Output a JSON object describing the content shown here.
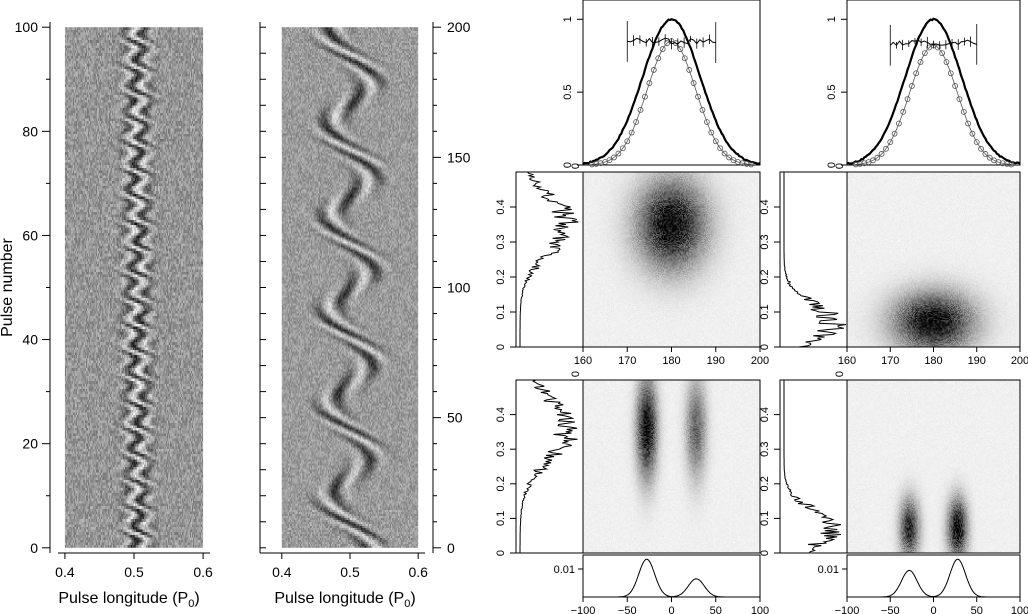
{
  "chart_data": [
    {
      "panel": "left-left",
      "type": "heatmap",
      "xlabel": "Pulse longitude (P",
      "xlabel_sub": "0",
      "xlabel_close": ")",
      "ylabel": "Pulse number",
      "xlim": [
        0.39,
        0.61
      ],
      "ylim": [
        -1,
        101
      ],
      "xticks": [
        0.4,
        0.5,
        0.6
      ],
      "xtick_labels": [
        "0.4",
        "0.5",
        "0.6"
      ],
      "yticks": [
        0,
        20,
        40,
        60,
        80,
        100
      ],
      "ytick_labels": [
        "0",
        "20",
        "40",
        "60",
        "80",
        "100"
      ],
      "pattern": {
        "center": 0.505,
        "drift_period": 20,
        "amplitude": 0.012,
        "width": 0.015
      }
    },
    {
      "panel": "left-right",
      "type": "heatmap",
      "xlabel": "Pulse longitude (P",
      "xlabel_sub": "0",
      "xlabel_close": ")",
      "xlim": [
        0.39,
        0.61
      ],
      "ylim": [
        -2,
        202
      ],
      "xticks": [
        0.4,
        0.5,
        0.6
      ],
      "xtick_labels": [
        "0.4",
        "0.5",
        "0.6"
      ],
      "yticks": [
        0,
        50,
        100,
        150,
        200
      ],
      "ytick_labels": [
        "0",
        "50",
        "100",
        "150",
        "200"
      ],
      "pattern": {
        "center": 0.5,
        "arc_period": 36,
        "amplitude": 0.03,
        "width": 0.012
      }
    },
    {
      "panel": "right-top-left",
      "type": "line",
      "ylim": [
        0,
        1.05
      ],
      "yticks": [
        0,
        0.5,
        1
      ],
      "ytick_labels": [
        "0",
        "0.5",
        "1"
      ],
      "xlim": [
        160,
        200
      ],
      "profile_center": 180,
      "profile_sigma": 6.5,
      "profile2_center": 180,
      "profile2_sigma": 5.5,
      "profile2_peak": 0.85,
      "pol_level": 0.85
    },
    {
      "panel": "right-top-right",
      "type": "line",
      "ylim": [
        0,
        1.05
      ],
      "yticks": [
        0,
        0.5,
        1
      ],
      "ytick_labels": [
        "0",
        "0.5",
        "1"
      ],
      "xlim": [
        160,
        200
      ],
      "profile_center": 180,
      "profile_sigma": 6.5,
      "profile2_center": 180,
      "profile2_sigma": 5.5,
      "profile2_peak": 0.82,
      "pol_level": 0.84
    },
    {
      "panel": "right-mid-left",
      "type": "heatmap",
      "xlim": [
        160,
        200
      ],
      "xticks": [
        160,
        170,
        180,
        190,
        200
      ],
      "xtick_labels": [
        "160",
        "170",
        "180",
        "190",
        "200"
      ],
      "ylim": [
        0,
        0.5
      ],
      "yticks": [
        0,
        0.1,
        0.2,
        0.3,
        0.4
      ],
      "ytick_labels": [
        "0",
        "0.1",
        "0.2",
        "0.3",
        "0.4"
      ],
      "side_zero_label": "0",
      "blob": {
        "x": 180,
        "y": 0.35,
        "sx": 5.5,
        "sy": 0.09
      }
    },
    {
      "panel": "right-mid-right",
      "type": "heatmap",
      "xlim": [
        160,
        200
      ],
      "xticks": [
        160,
        170,
        180,
        190,
        200
      ],
      "xtick_labels": [
        "160",
        "170",
        "180",
        "190",
        "200"
      ],
      "ylim": [
        0,
        0.5
      ],
      "yticks": [
        0,
        0.1,
        0.2,
        0.3,
        0.4
      ],
      "ytick_labels": [
        "0",
        "0.1",
        "0.2",
        "0.3",
        "0.4"
      ],
      "side_zero_label": "0",
      "blob": {
        "x": 180,
        "y": 0.07,
        "sx": 6.5,
        "sy": 0.06
      }
    },
    {
      "panel": "right-bot-left",
      "type": "heatmap",
      "xlim": [
        -100,
        100
      ],
      "ylim": [
        0,
        0.5
      ],
      "yticks": [
        0,
        0.1,
        0.2,
        0.3,
        0.4
      ],
      "ytick_labels": [
        "0",
        "0.1",
        "0.2",
        "0.3",
        "0.4"
      ],
      "side_zero_label": "0",
      "blobs": [
        {
          "x": -28,
          "y": 0.36,
          "sx": 8,
          "sy": 0.1,
          "a": 1.0
        },
        {
          "x": 28,
          "y": 0.36,
          "sx": 8,
          "sy": 0.1,
          "a": 0.6
        }
      ]
    },
    {
      "panel": "right-bot-right",
      "type": "heatmap",
      "xlim": [
        -100,
        100
      ],
      "ylim": [
        0,
        0.5
      ],
      "yticks": [
        0,
        0.1,
        0.2,
        0.3,
        0.4
      ],
      "ytick_labels": [
        "0",
        "0.1",
        "0.2",
        "0.3",
        "0.4"
      ],
      "side_zero_label": "0",
      "blobs": [
        {
          "x": -28,
          "y": 0.07,
          "sx": 8,
          "sy": 0.06,
          "a": 0.85
        },
        {
          "x": 28,
          "y": 0.07,
          "sx": 8,
          "sy": 0.06,
          "a": 1.0
        }
      ]
    },
    {
      "panel": "right-prof-left",
      "type": "line",
      "xlim": [
        -100,
        100
      ],
      "xticks": [
        -100,
        -50,
        0,
        50,
        100
      ],
      "xtick_labels": [
        "−100",
        "−50",
        "0",
        "50",
        "100"
      ],
      "ytick_value": 0.01,
      "ytick_label": "0.01",
      "peaks": [
        {
          "x": -28,
          "h": 0.0135,
          "s": 9
        },
        {
          "x": 28,
          "h": 0.0065,
          "s": 9
        }
      ],
      "ymax": 0.015
    },
    {
      "panel": "right-prof-right",
      "type": "line",
      "xlim": [
        -100,
        100
      ],
      "xticks": [
        -100,
        -50,
        0,
        50,
        100
      ],
      "xtick_labels": [
        "−100",
        "−50",
        "0",
        "50",
        "100"
      ],
      "ytick_value": 0.01,
      "ytick_label": "0.01",
      "peaks": [
        {
          "x": -28,
          "h": 0.0095,
          "s": 9
        },
        {
          "x": 28,
          "h": 0.0135,
          "s": 9
        }
      ],
      "ymax": 0.015
    }
  ]
}
